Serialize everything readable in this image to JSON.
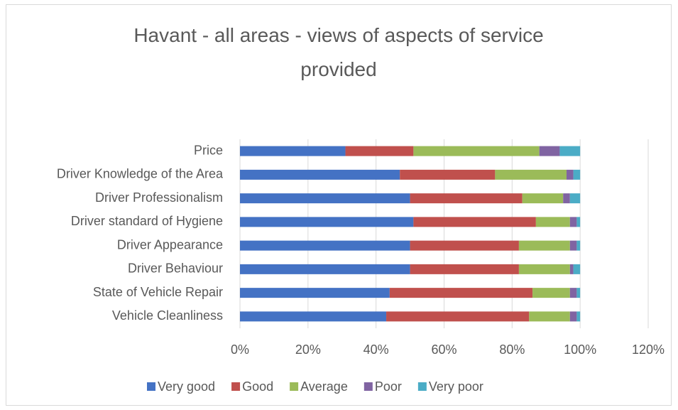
{
  "chart_data": {
    "type": "stacked_bar_horizontal",
    "title": "Havant - all areas - views of aspects of service provided",
    "categories": [
      "Price",
      "Driver Knowledge of the Area",
      "Driver Professionalism",
      "Driver standard of Hygiene",
      "Driver Appearance",
      "Driver Behaviour",
      "State of Vehicle Repair",
      "Vehicle Cleanliness"
    ],
    "series": [
      {
        "name": "Very good",
        "color": "#4472c4",
        "values": [
          31,
          47,
          50,
          51,
          50,
          50,
          44,
          43
        ]
      },
      {
        "name": "Good",
        "color": "#c0504d",
        "values": [
          20,
          28,
          33,
          36,
          32,
          32,
          42,
          42
        ]
      },
      {
        "name": "Average",
        "color": "#9bbb59",
        "values": [
          37,
          21,
          12,
          10,
          15,
          15,
          11,
          12
        ]
      },
      {
        "name": "Poor",
        "color": "#8064a2",
        "values": [
          6,
          2,
          2,
          2,
          2,
          1,
          2,
          2
        ]
      },
      {
        "name": "Very poor",
        "color": "#4bacc6",
        "values": [
          6,
          2,
          3,
          1,
          1,
          2,
          1,
          1
        ]
      }
    ],
    "xlim": [
      0,
      120
    ],
    "xticks": [
      {
        "value": 0,
        "label": "0%"
      },
      {
        "value": 20,
        "label": "20%"
      },
      {
        "value": 40,
        "label": "40%"
      },
      {
        "value": 60,
        "label": "60%"
      },
      {
        "value": 80,
        "label": "80%"
      },
      {
        "value": 100,
        "label": "100%"
      },
      {
        "value": 120,
        "label": "120%"
      }
    ],
    "grid": true,
    "legend": "bottom"
  }
}
